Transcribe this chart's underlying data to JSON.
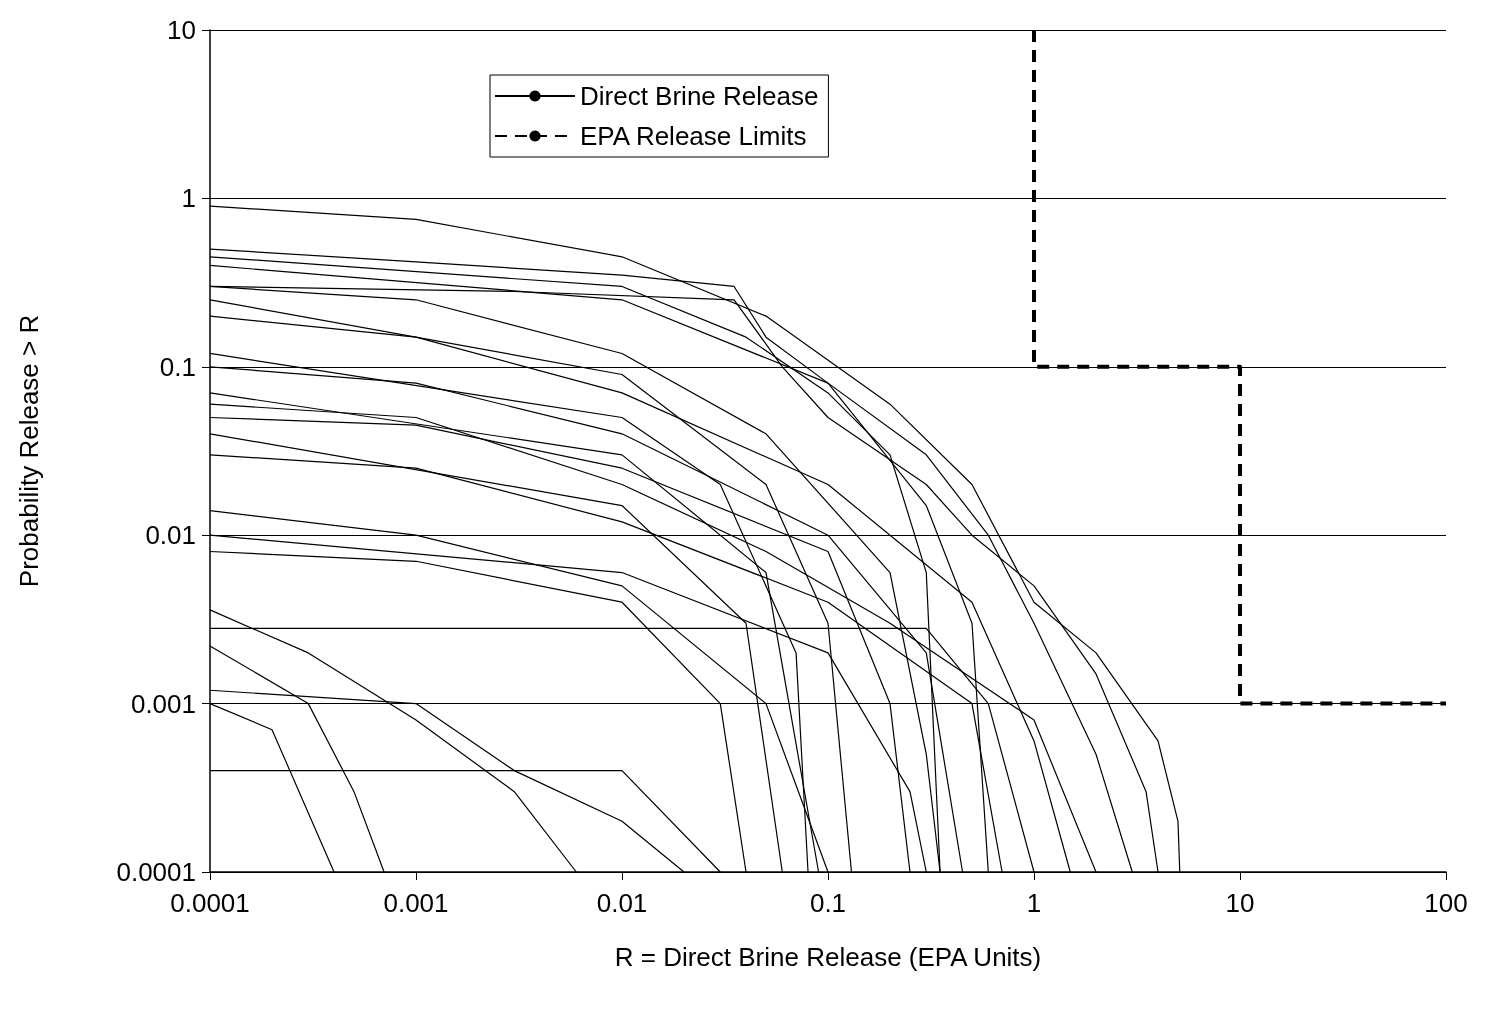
{
  "chart_data": {
    "type": "line",
    "xlabel": "R = Direct Brine Release (EPA Units)",
    "ylabel": "Probability Release > R",
    "log": "xy",
    "grid": "y",
    "legend": "top left",
    "marker": "none",
    "line_style": "solid",
    "xlim": [
      0.0001,
      100
    ],
    "ylim": [
      0.0001,
      10
    ],
    "xticks": [
      0.0001,
      0.001,
      0.01,
      0.1,
      1,
      10,
      100
    ],
    "yticks": [
      0.0001,
      0.001,
      0.01,
      0.1,
      1,
      10
    ],
    "series": [
      {
        "name": "Direct Brine Release",
        "color": "#000000",
        "x": [
          0.0001,
          0.001,
          0.01,
          0.05,
          0.2,
          0.5,
          1,
          2,
          4,
          5,
          5.1
        ],
        "values": [
          0.9,
          0.75,
          0.45,
          0.2,
          0.06,
          0.02,
          0.004,
          0.002,
          0.0006,
          0.0002,
          0.0001
        ]
      },
      {
        "color": "#000000",
        "x": [
          0.0001,
          0.001,
          0.01,
          0.035,
          0.05,
          0.1,
          0.3,
          0.6,
          1,
          2,
          3
        ],
        "values": [
          0.5,
          0.42,
          0.35,
          0.3,
          0.15,
          0.08,
          0.03,
          0.01,
          0.003,
          0.0005,
          0.0001
        ]
      },
      {
        "color": "#000000",
        "x": [
          0.0001,
          0.01,
          0.1,
          0.3,
          0.5,
          0.6
        ],
        "values": [
          0.4,
          0.25,
          0.08,
          0.015,
          0.003,
          0.0001
        ]
      },
      {
        "color": "#000000",
        "x": [
          0.0001,
          0.001,
          0.01,
          0.05,
          0.2,
          0.3,
          0.35
        ],
        "values": [
          0.3,
          0.25,
          0.12,
          0.04,
          0.006,
          0.0005,
          0.0001
        ]
      },
      {
        "color": "#000000",
        "x": [
          0.0001,
          0.01,
          0.05,
          0.1,
          0.13
        ],
        "values": [
          0.25,
          0.09,
          0.02,
          0.003,
          0.0001
        ]
      },
      {
        "color": "#000000",
        "x": [
          0.0001,
          0.001,
          0.01,
          0.1,
          0.5,
          1,
          1.5
        ],
        "values": [
          0.2,
          0.15,
          0.07,
          0.02,
          0.004,
          0.0006,
          0.0001
        ]
      },
      {
        "color": "#000000",
        "x": [
          0.0001,
          0.01,
          0.03,
          0.07,
          0.08
        ],
        "values": [
          0.12,
          0.05,
          0.02,
          0.002,
          0.0001
        ]
      },
      {
        "color": "#000000",
        "x": [
          0.0001,
          0.001,
          0.01,
          0.1,
          0.3,
          0.45
        ],
        "values": [
          0.1,
          0.08,
          0.04,
          0.01,
          0.002,
          0.0001
        ]
      },
      {
        "color": "#000000",
        "x": [
          0.0001,
          0.01,
          0.05,
          0.09
        ],
        "values": [
          0.07,
          0.03,
          0.006,
          0.0001
        ]
      },
      {
        "color": "#000000",
        "x": [
          0.0001,
          0.001,
          0.01,
          0.1,
          0.2,
          0.25
        ],
        "values": [
          0.05,
          0.045,
          0.025,
          0.008,
          0.001,
          0.0001
        ]
      },
      {
        "color": "#000000",
        "x": [
          0.0001,
          0.01,
          0.04,
          0.06
        ],
        "values": [
          0.04,
          0.015,
          0.003,
          0.0001
        ]
      },
      {
        "color": "#000000",
        "x": [
          0.0001,
          0.001,
          0.01,
          0.1,
          0.5,
          0.7
        ],
        "values": [
          0.03,
          0.025,
          0.012,
          0.004,
          0.001,
          0.0001
        ]
      },
      {
        "color": "#000000",
        "x": [
          0.0001,
          0.001,
          0.01,
          0.05,
          0.1
        ],
        "values": [
          0.014,
          0.01,
          0.005,
          0.001,
          0.0001
        ]
      },
      {
        "color": "#000000",
        "x": [
          0.0001,
          0.01,
          0.1,
          0.25,
          0.3
        ],
        "values": [
          0.01,
          0.006,
          0.002,
          0.0003,
          0.0001
        ]
      },
      {
        "color": "#000000",
        "x": [
          0.0001,
          0.001,
          0.01,
          0.03,
          0.04
        ],
        "values": [
          0.008,
          0.007,
          0.004,
          0.001,
          0.0001
        ]
      },
      {
        "color": "#000000",
        "x": [
          0.0001,
          0.01,
          0.1,
          0.3,
          0.6,
          1
        ],
        "values": [
          0.0028,
          0.0028,
          0.0028,
          0.0028,
          0.001,
          0.0001
        ]
      },
      {
        "color": "#000000",
        "x": [
          0.0001,
          0.0003,
          0.001,
          0.003,
          0.006
        ],
        "values": [
          0.0036,
          0.002,
          0.0008,
          0.0003,
          0.0001
        ]
      },
      {
        "color": "#000000",
        "x": [
          0.0001,
          0.0003,
          0.0005,
          0.0007
        ],
        "values": [
          0.0022,
          0.001,
          0.0003,
          0.0001
        ]
      },
      {
        "color": "#000000",
        "x": [
          0.0001,
          0.001,
          0.003,
          0.01,
          0.02
        ],
        "values": [
          0.0012,
          0.001,
          0.0004,
          0.0002,
          0.0001
        ]
      },
      {
        "color": "#000000",
        "x": [
          0.0001,
          0.001,
          0.01,
          0.03
        ],
        "values": [
          0.0004,
          0.0004,
          0.0004,
          0.0001
        ]
      },
      {
        "color": "#000000",
        "x": [
          0.0001,
          0.0002,
          0.0004
        ],
        "values": [
          0.001,
          0.0007,
          0.0001
        ]
      },
      {
        "color": "#000000",
        "x": [
          0.0001,
          0.003,
          0.035,
          0.06,
          0.1,
          0.3,
          0.5,
          1,
          2,
          3.5,
          4
        ],
        "values": [
          0.3,
          0.28,
          0.25,
          0.1,
          0.05,
          0.02,
          0.01,
          0.005,
          0.0015,
          0.0003,
          0.0001
        ]
      },
      {
        "color": "#000000",
        "x": [
          0.0001,
          0.01,
          0.04,
          0.1,
          0.2,
          0.3,
          0.35
        ],
        "values": [
          0.45,
          0.3,
          0.15,
          0.07,
          0.03,
          0.006,
          0.0001
        ]
      },
      {
        "color": "#000000",
        "x": [
          0.0001,
          0.001,
          0.01,
          0.05,
          0.2,
          1,
          2
        ],
        "values": [
          0.06,
          0.05,
          0.02,
          0.008,
          0.003,
          0.0008,
          0.0001
        ]
      },
      {
        "name": "EPA Release Limits",
        "color": "#000000",
        "line_style": "dashed",
        "x": [
          1,
          1,
          10,
          10,
          100
        ],
        "values": [
          10,
          0.1,
          0.1,
          0.001,
          0.001
        ]
      }
    ]
  }
}
